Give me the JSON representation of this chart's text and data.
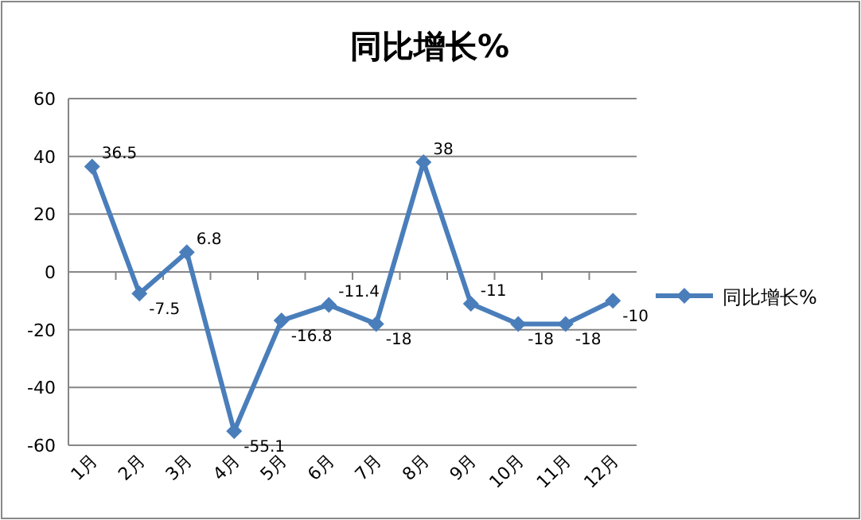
{
  "chart_data": {
    "type": "line",
    "title": "同比增长%",
    "categories": [
      "1月",
      "2月",
      "3月",
      "4月",
      "5月",
      "6月",
      "7月",
      "8月",
      "9月",
      "10月",
      "11月",
      "12月"
    ],
    "series": [
      {
        "name": "同比增长%",
        "color": "#4a7ebb",
        "values": [
          36.5,
          -7.5,
          6.8,
          -55.1,
          -16.8,
          -11.4,
          -18,
          38,
          -11,
          -18,
          -18,
          -10
        ]
      }
    ],
    "ylim": [
      -60,
      60
    ],
    "yticks": [
      -60,
      -40,
      -20,
      0,
      20,
      40,
      60
    ],
    "grid": "y",
    "legend": "right",
    "marker": "diamond",
    "data_labels": true
  }
}
